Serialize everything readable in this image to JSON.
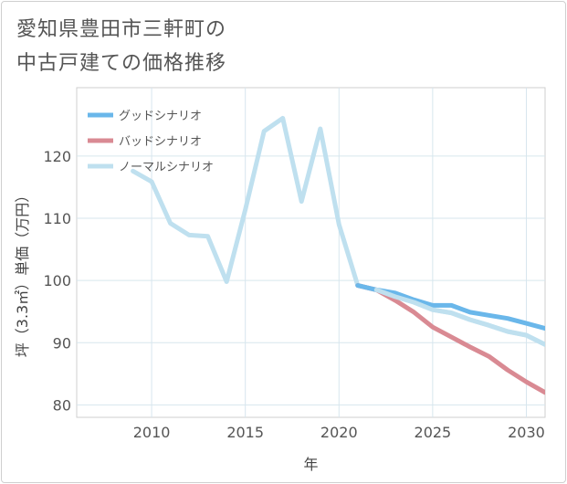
{
  "title": {
    "line1": "愛知県豊田市三軒町の",
    "line2": "中古戸建ての価格推移"
  },
  "chart_data": {
    "type": "line",
    "xlabel": "年",
    "ylabel": "坪（3.3㎡）単価（万円）",
    "xlim": [
      2006,
      2031
    ],
    "ylim": [
      78,
      131
    ],
    "xticks": [
      2010,
      2015,
      2020,
      2025,
      2030
    ],
    "yticks": [
      80,
      90,
      100,
      110,
      120
    ],
    "grid": true,
    "legend_position": "top-left",
    "series": [
      {
        "name": "グッドシナリオ",
        "color": "#6ab7ea",
        "x": [
          2021,
          2022,
          2023,
          2024,
          2025,
          2026,
          2027,
          2028,
          2029,
          2030,
          2031
        ],
        "values": [
          99.2,
          98.5,
          98.0,
          96.9,
          96.0,
          96.0,
          94.9,
          94.4,
          93.9,
          93.1,
          92.3
        ]
      },
      {
        "name": "バッドシナリオ",
        "color": "#d98a93",
        "x": [
          2021,
          2022,
          2023,
          2024,
          2025,
          2026,
          2027,
          2028,
          2029,
          2030,
          2031
        ],
        "values": [
          99.2,
          98.5,
          96.8,
          94.9,
          92.5,
          90.9,
          89.3,
          87.8,
          85.6,
          83.7,
          82.0
        ]
      },
      {
        "name": "ノーマルシナリオ",
        "color": "#bfe0ef",
        "x": [
          2009,
          2010,
          2011,
          2012,
          2013,
          2014,
          2015,
          2016,
          2017,
          2018,
          2019,
          2020,
          2021,
          2022,
          2023,
          2024,
          2025,
          2026,
          2027,
          2028,
          2029,
          2030,
          2031
        ],
        "values": [
          117.6,
          115.9,
          109.2,
          107.3,
          107.1,
          99.8,
          111.4,
          124.0,
          126.1,
          112.7,
          124.4,
          109.0,
          99.2,
          98.5,
          97.4,
          96.5,
          95.3,
          94.8,
          93.7,
          92.8,
          91.8,
          91.2,
          89.7
        ]
      }
    ]
  }
}
